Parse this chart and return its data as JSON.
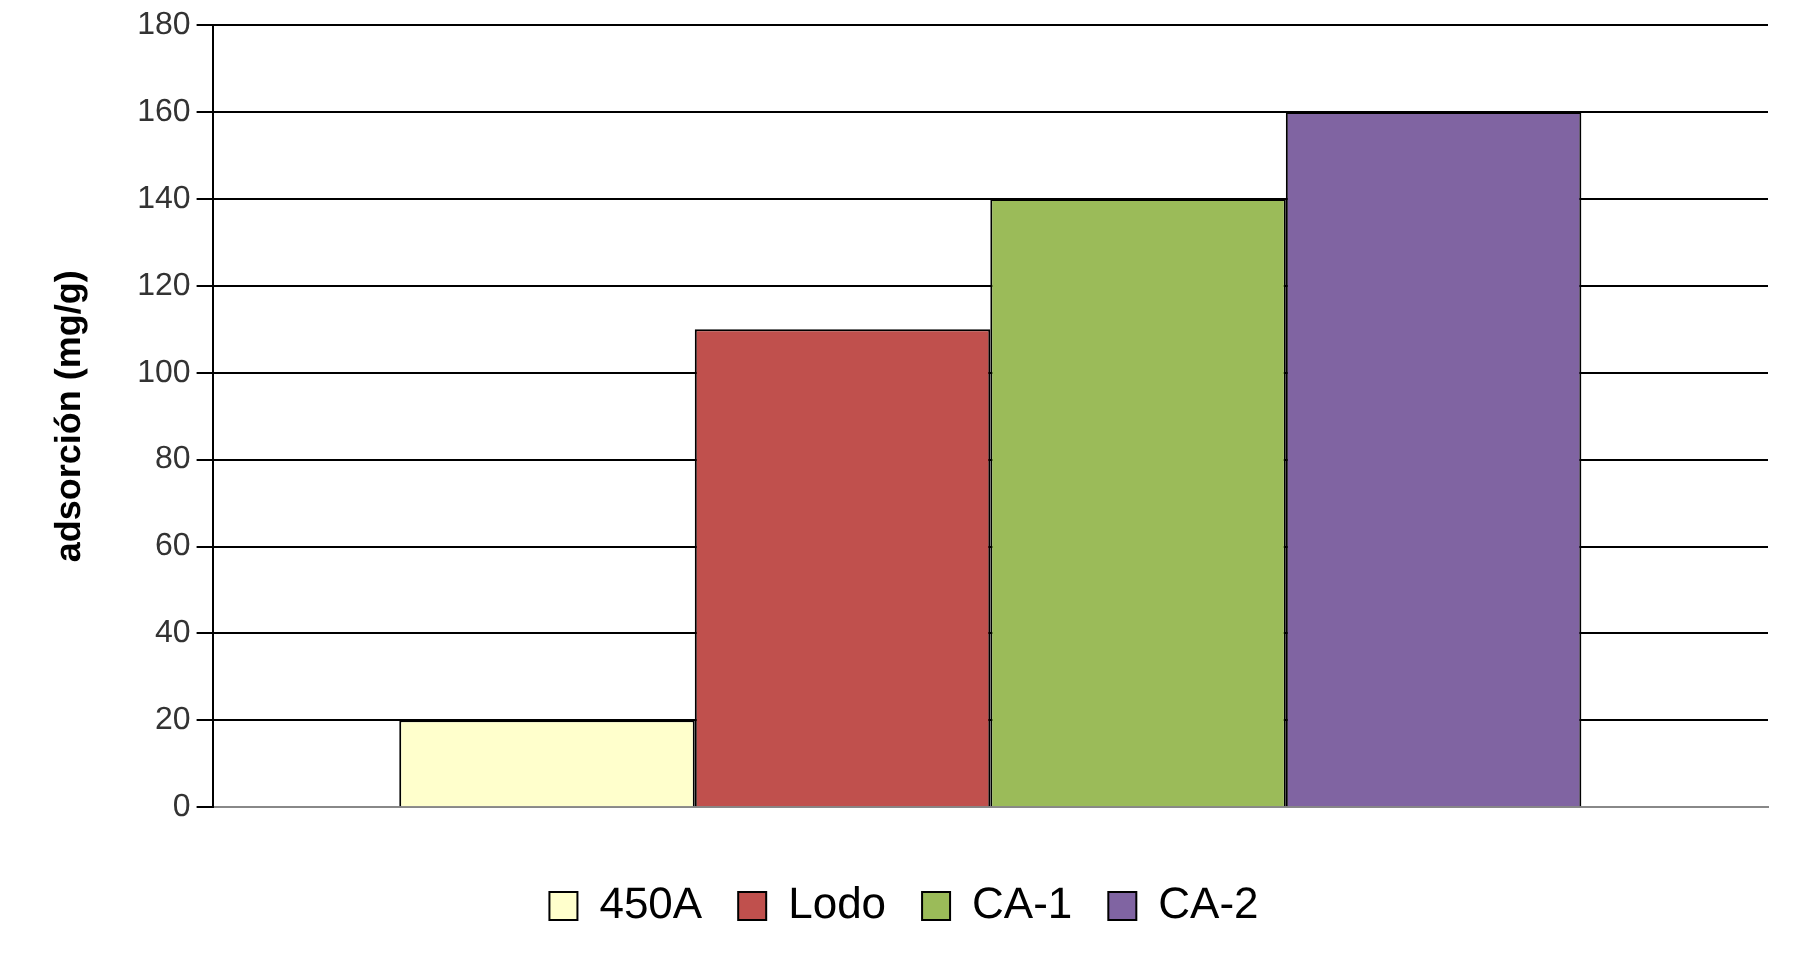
{
  "chart_data": {
    "type": "bar",
    "ylabel": "adsorción (mg/g)",
    "categories": [
      null
    ],
    "series": [
      {
        "name": "450A",
        "color": "#ffffcc",
        "values": [
          20
        ]
      },
      {
        "name": "Lodo",
        "color": "#c0504d",
        "values": [
          110
        ]
      },
      {
        "name": "CA-1",
        "color": "#9bbb59",
        "values": [
          140
        ]
      },
      {
        "name": "CA-2",
        "color": "#8064a2",
        "values": [
          160
        ]
      }
    ],
    "ylim": [
      0,
      180
    ],
    "yticks": [
      0,
      20,
      40,
      60,
      80,
      100,
      120,
      140,
      160,
      180
    ],
    "grid": "y",
    "legend": "bottom"
  }
}
